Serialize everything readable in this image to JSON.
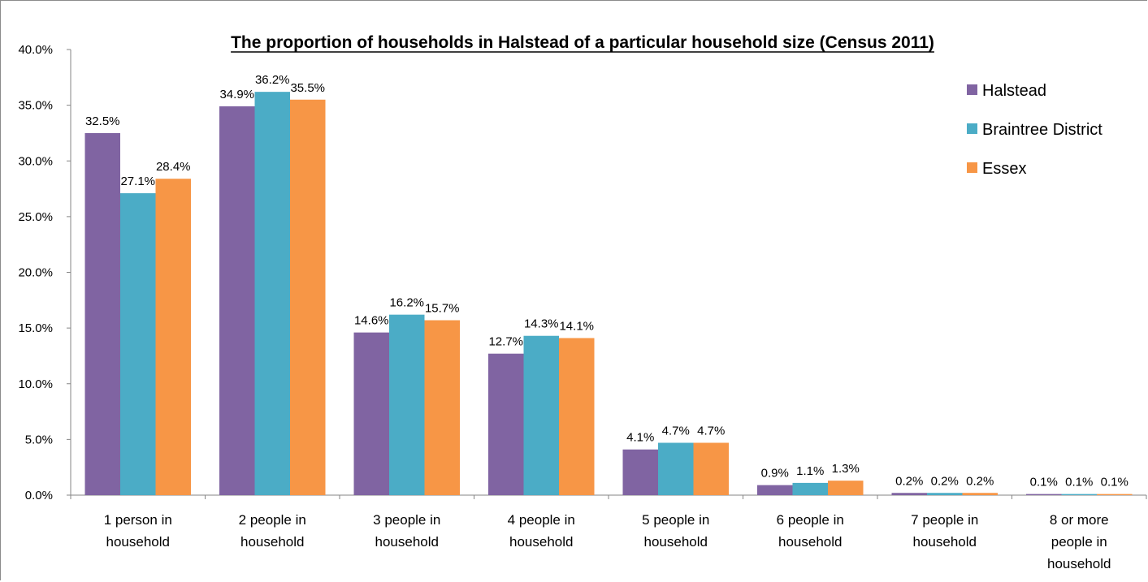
{
  "chart_data": {
    "type": "bar",
    "title": "The proportion of households in Halstead of a particular household size (Census 2011)",
    "xlabel": "",
    "ylabel": "",
    "ylim": [
      0,
      40
    ],
    "yticks": [
      "0.0%",
      "5.0%",
      "10.0%",
      "15.0%",
      "20.0%",
      "25.0%",
      "30.0%",
      "35.0%",
      "40.0%"
    ],
    "categories": [
      [
        "1 person in",
        "household"
      ],
      [
        "2 people in",
        "household"
      ],
      [
        "3 people in",
        "household"
      ],
      [
        "4 people in",
        "household"
      ],
      [
        "5 people in",
        "household"
      ],
      [
        "6 people in",
        "household"
      ],
      [
        "7 people in",
        "household"
      ],
      [
        "8 or more",
        "people in",
        "household"
      ]
    ],
    "series": [
      {
        "name": "Halstead",
        "color": "#8064a2",
        "values": [
          32.5,
          34.9,
          14.6,
          12.7,
          4.1,
          0.9,
          0.2,
          0.1
        ],
        "labels": [
          "32.5%",
          "34.9%",
          "14.6%",
          "12.7%",
          "4.1%",
          "0.9%",
          "0.2%",
          "0.1%"
        ]
      },
      {
        "name": "Braintree District",
        "color": "#4bacc6",
        "values": [
          27.1,
          36.2,
          16.2,
          14.3,
          4.7,
          1.1,
          0.2,
          0.1
        ],
        "labels": [
          "27.1%",
          "36.2%",
          "16.2%",
          "14.3%",
          "4.7%",
          "1.1%",
          "0.2%",
          "0.1%"
        ]
      },
      {
        "name": "Essex",
        "color": "#f79646",
        "values": [
          28.4,
          35.5,
          15.7,
          14.1,
          4.7,
          1.3,
          0.2,
          0.1
        ],
        "labels": [
          "28.4%",
          "35.5%",
          "15.7%",
          "14.1%",
          "4.7%",
          "1.3%",
          "0.2%",
          "0.1%"
        ]
      }
    ],
    "legend_position": "top-right",
    "grid": false
  }
}
